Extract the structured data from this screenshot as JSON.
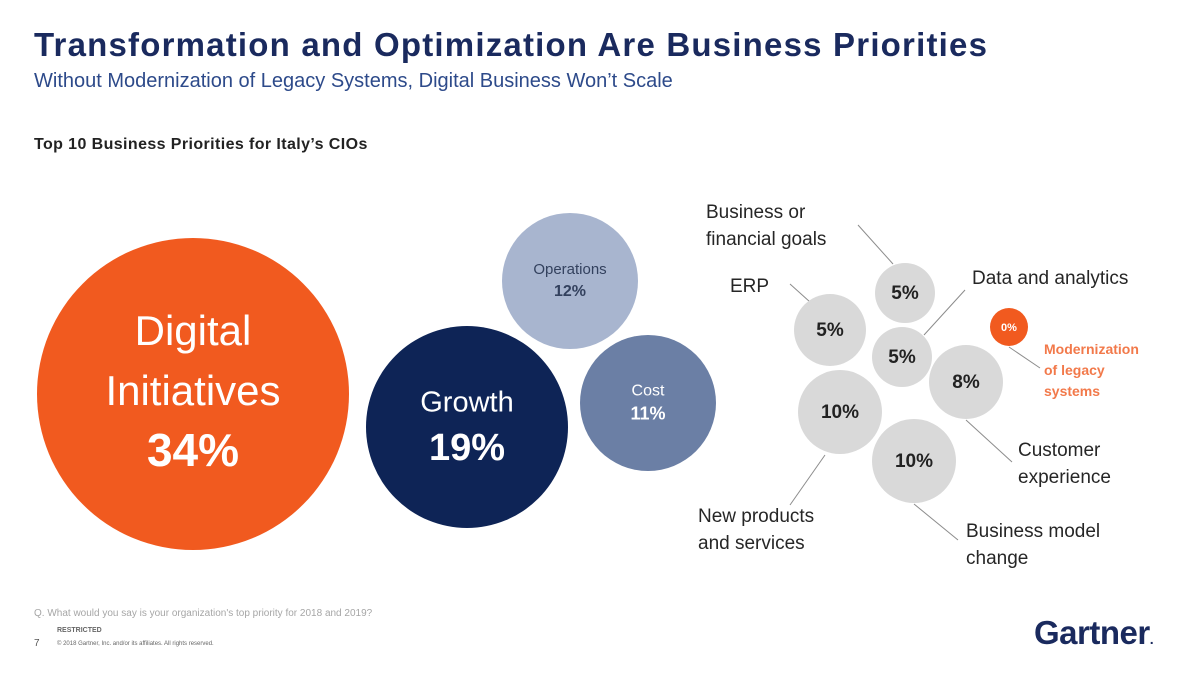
{
  "header": {
    "title": "Transformation and Optimization Are Business Priorities",
    "subtitle": "Without Modernization of Legacy Systems, Digital Business Won’t Scale"
  },
  "chart_data": {
    "type": "bubble",
    "title": "Top 10 Business Priorities for Italy’s CIOs",
    "unit": "%",
    "bubbles": [
      {
        "id": "digital",
        "lines": [
          "Digital",
          "Initiatives"
        ],
        "value": 34,
        "value_label": "34%",
        "color": "#f15a1f",
        "text_color": "#ffffff"
      },
      {
        "id": "growth",
        "lines": [
          "Growth"
        ],
        "value": 19,
        "value_label": "19%",
        "color": "#0e2456",
        "text_color": "#ffffff"
      },
      {
        "id": "operations",
        "lines": [
          "Operations"
        ],
        "value": 12,
        "value_label": "12%",
        "color": "#a8b5cf",
        "text_color": "#2c3a5a"
      },
      {
        "id": "cost",
        "lines": [
          "Cost"
        ],
        "value": 11,
        "value_label": "11%",
        "color": "#6b7fa5",
        "text_color": "#ffffff"
      },
      {
        "id": "erp",
        "lines": [
          "ERP"
        ],
        "value": 5,
        "value_label": "5%",
        "color": "#d9d9d9",
        "text_color": "#222222",
        "outside_label": true
      },
      {
        "id": "business-financial-goals",
        "lines": [
          "Business or",
          "financial goals"
        ],
        "value": 5,
        "value_label": "5%",
        "color": "#d9d9d9",
        "text_color": "#222222",
        "outside_label": true
      },
      {
        "id": "data-analytics",
        "lines": [
          "Data and analytics"
        ],
        "value": 5,
        "value_label": "5%",
        "color": "#d9d9d9",
        "text_color": "#222222",
        "outside_label": true
      },
      {
        "id": "customer-experience",
        "lines": [
          "Customer",
          "experience"
        ],
        "value": 8,
        "value_label": "8%",
        "color": "#d9d9d9",
        "text_color": "#222222",
        "outside_label": true
      },
      {
        "id": "new-products",
        "lines": [
          "New products",
          "and services"
        ],
        "value": 10,
        "value_label": "10%",
        "color": "#d9d9d9",
        "text_color": "#222222",
        "outside_label": true
      },
      {
        "id": "business-model",
        "lines": [
          "Business model",
          "change"
        ],
        "value": 10,
        "value_label": "10%",
        "color": "#d9d9d9",
        "text_color": "#222222",
        "outside_label": true
      },
      {
        "id": "modernization",
        "lines": [
          "Modernization",
          "of legacy",
          "systems"
        ],
        "value": 0,
        "value_label": "0%",
        "color": "#f15a1f",
        "text_color": "#ffffff",
        "outside_label": true,
        "outside_label_color": "#f2794a"
      }
    ]
  },
  "footer": {
    "question": "Q. What would you say is your organization's top priority for 2018 and 2019?",
    "restricted": "RESTRICTED",
    "page_number": "7",
    "copyright": "© 2018 Gartner, Inc. and/or its affiliates. All rights reserved.",
    "logo": "Gartner",
    "logo_dot": "."
  }
}
